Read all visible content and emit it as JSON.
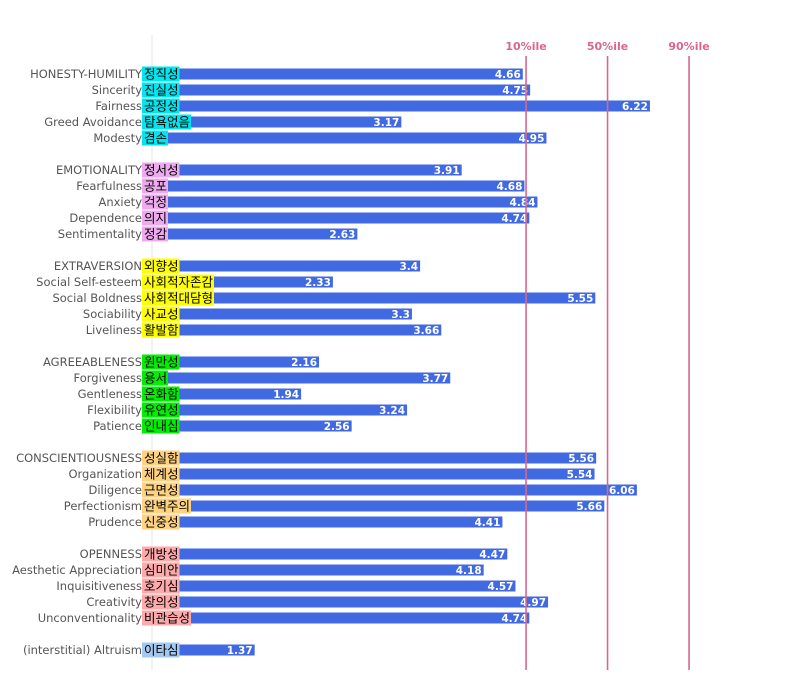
{
  "chart_data": {
    "type": "bar",
    "orientation": "horizontal",
    "xlim": [
      0,
      6.25
    ],
    "grid": false,
    "bar_color": "#4169e1",
    "reference_line_color": "#d9668f",
    "reference_lines": [
      {
        "label": "10%ile",
        "value": 4.7
      },
      {
        "label": "50%ile",
        "value": 5.7
      },
      {
        "label": "90%ile",
        "value": 6.7
      }
    ],
    "groups": [
      {
        "name": "HONESTY-HUMILITY",
        "color": "#00e5ee",
        "rows": [
          {
            "en": "HONESTY-HUMILITY",
            "ko": "정직성",
            "value": 4.66
          },
          {
            "en": "Sincerity",
            "ko": "진실성",
            "value": 4.75
          },
          {
            "en": "Fairness",
            "ko": "공정성",
            "value": 6.22
          },
          {
            "en": "Greed Avoidance",
            "ko": "탐욕없음",
            "value": 3.17
          },
          {
            "en": "Modesty",
            "ko": "겸손",
            "value": 4.95
          }
        ]
      },
      {
        "name": "EMOTIONALITY",
        "color": "#eeaaee",
        "rows": [
          {
            "en": "EMOTIONALITY",
            "ko": "정서성",
            "value": 3.91
          },
          {
            "en": "Fearfulness",
            "ko": "공포",
            "value": 4.68
          },
          {
            "en": "Anxiety",
            "ko": "걱정",
            "value": 4.84
          },
          {
            "en": "Dependence",
            "ko": "의지",
            "value": 4.74
          },
          {
            "en": "Sentimentality",
            "ko": "정감",
            "value": 2.63
          }
        ]
      },
      {
        "name": "EXTRAVERSION",
        "color": "#ffff00",
        "rows": [
          {
            "en": "EXTRAVERSION",
            "ko": "외향성",
            "value": 3.4
          },
          {
            "en": "Social Self-esteem",
            "ko": "사회적자존감",
            "value": 2.33
          },
          {
            "en": "Social Boldness",
            "ko": "사회적대담형",
            "value": 5.55
          },
          {
            "en": "Sociability",
            "ko": "사교성",
            "value": 3.3
          },
          {
            "en": "Liveliness",
            "ko": "활발함",
            "value": 3.66
          }
        ]
      },
      {
        "name": "AGREEABLENESS",
        "color": "#00ee00",
        "rows": [
          {
            "en": "AGREEABLENESS",
            "ko": "원만성",
            "value": 2.16
          },
          {
            "en": "Forgiveness",
            "ko": "용서",
            "value": 3.77
          },
          {
            "en": "Gentleness",
            "ko": "온화함",
            "value": 1.94
          },
          {
            "en": "Flexibility",
            "ko": "유연성",
            "value": 3.24
          },
          {
            "en": "Patience",
            "ko": "인내심",
            "value": 2.56
          }
        ]
      },
      {
        "name": "CONSCIENTIOUSNESS",
        "color": "#ffd27f",
        "rows": [
          {
            "en": "CONSCIENTIOUSNESS",
            "ko": "성실함",
            "value": 5.56
          },
          {
            "en": "Organization",
            "ko": "체계성",
            "value": 5.54
          },
          {
            "en": "Diligence",
            "ko": "근면성",
            "value": 6.06
          },
          {
            "en": "Perfectionism",
            "ko": "완벽주의",
            "value": 5.66
          },
          {
            "en": "Prudence",
            "ko": "신중성",
            "value": 4.41
          }
        ]
      },
      {
        "name": "OPENNESS",
        "color": "#ffaaaa",
        "rows": [
          {
            "en": "OPENNESS",
            "ko": "개방성",
            "value": 4.47
          },
          {
            "en": "Aesthetic Appreciation",
            "ko": "심미안",
            "value": 4.18
          },
          {
            "en": "Inquisitiveness",
            "ko": "호기심",
            "value": 4.57
          },
          {
            "en": "Creativity",
            "ko": "창의성",
            "value": 4.97
          },
          {
            "en": "Unconventionality",
            "ko": "비관습성",
            "value": 4.74
          }
        ]
      },
      {
        "name": "(interstitial) Altruism",
        "color": "#a4c8f0",
        "rows": [
          {
            "en": "(interstitial) Altruism",
            "ko": "이타심",
            "value": 1.37
          }
        ]
      }
    ]
  }
}
